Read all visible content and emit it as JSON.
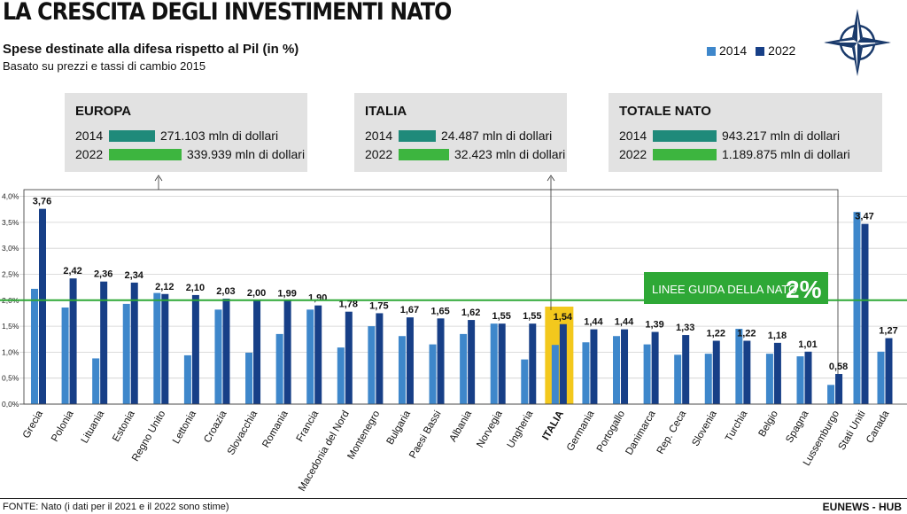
{
  "header": {
    "title": "LA CRESCITA DEGLI INVESTIMENTI NATO",
    "subtitle": "Spese destinate alla difesa rispetto al Pil (in %)",
    "note": "Basato su prezzi e tassi di cambio 2015"
  },
  "legend": [
    {
      "label": "2014",
      "color": "#3e87cb"
    },
    {
      "label": "2022",
      "color": "#173f87"
    }
  ],
  "boxes": [
    {
      "title": "EUROPA",
      "rows": [
        {
          "year": "2014",
          "text": "271.103 mln di dollari",
          "color": "#1f8a7a",
          "value": 271103
        },
        {
          "year": "2022",
          "text": "339.939 mln di dollari",
          "color": "#3db53f",
          "value": 339939
        }
      ]
    },
    {
      "title": "ITALIA",
      "rows": [
        {
          "year": "2014",
          "text": "24.487 mln di dollari",
          "color": "#1f8a7a",
          "value": 24487
        },
        {
          "year": "2022",
          "text": "32.423 mln di dollari",
          "color": "#3db53f",
          "value": 32423
        }
      ]
    },
    {
      "title": "TOTALE NATO",
      "rows": [
        {
          "year": "2014",
          "text": "943.217 mln di dollari",
          "color": "#1f8a7a",
          "value": 943217
        },
        {
          "year": "2022",
          "text": "1.189.875 mln di dollari",
          "color": "#3db53f",
          "value": 1189875
        }
      ]
    }
  ],
  "guideline": {
    "label": "LINEE GUIDA DELLA NATO",
    "value_label": "2%",
    "value": 2.0,
    "color": "#2ea836"
  },
  "chart_data": {
    "type": "bar",
    "ylim": [
      0,
      4.0
    ],
    "yticks": [
      "0,0%",
      "0,5%",
      "1,0%",
      "1,5%",
      "2,0%",
      "2,5%",
      "3,0%",
      "3,5%",
      "4,0%"
    ],
    "categories": [
      "Grecia",
      "Polonia",
      "Lituania",
      "Estonia",
      "Regno Unito",
      "Lettonia",
      "Croazia",
      "Slovacchia",
      "Romania",
      "Francia",
      "Macedonia del Nord",
      "Montenegro",
      "Bulgaria",
      "Paesi Bassi",
      "Albania",
      "Norvegia",
      "Ungheria",
      "ITALIA",
      "Germania",
      "Portogallo",
      "Danimarca",
      "Rep. Ceca",
      "Slovenia",
      "Turchia",
      "Belgio",
      "Spagna",
      "Lussemburgo",
      "Stati Uniti",
      "Canada"
    ],
    "series": [
      {
        "name": "2014",
        "color": "#3e87cb",
        "values": [
          2.22,
          1.86,
          0.88,
          1.93,
          2.14,
          0.94,
          1.82,
          0.99,
          1.35,
          1.82,
          1.09,
          1.5,
          1.31,
          1.15,
          1.35,
          1.55,
          0.86,
          1.14,
          1.19,
          1.31,
          1.15,
          0.95,
          0.97,
          1.45,
          0.97,
          0.92,
          0.37,
          3.7,
          1.01
        ]
      },
      {
        "name": "2022",
        "color": "#173f87",
        "values": [
          3.76,
          2.42,
          2.36,
          2.34,
          2.12,
          2.1,
          2.03,
          2.0,
          1.99,
          1.9,
          1.78,
          1.75,
          1.67,
          1.65,
          1.62,
          1.55,
          1.55,
          1.54,
          1.44,
          1.44,
          1.39,
          1.33,
          1.22,
          1.22,
          1.18,
          1.01,
          0.58,
          3.47,
          1.27
        ]
      }
    ],
    "labels": [
      "3,76",
      "2,42",
      "2,36",
      "2,34",
      "2,12",
      "2,10",
      "2,03",
      "2,00",
      "1,99",
      "1,90",
      "1,78",
      "1,75",
      "1,67",
      "1,65",
      "1,62",
      "1,55",
      "1,55",
      "1,54",
      "1,44",
      "1,44",
      "1,39",
      "1,33",
      "1,22",
      "1,22",
      "1,18",
      "1,01",
      "0,58",
      "3,47",
      "1,27"
    ],
    "highlight": "ITALIA",
    "highlight_color": "#f3c81d",
    "grid": true
  },
  "footer": {
    "source": "FONTE: Nato (i dati per il 2021 e il 2022 sono stime)",
    "credit": "EUNEWS - HUB"
  }
}
